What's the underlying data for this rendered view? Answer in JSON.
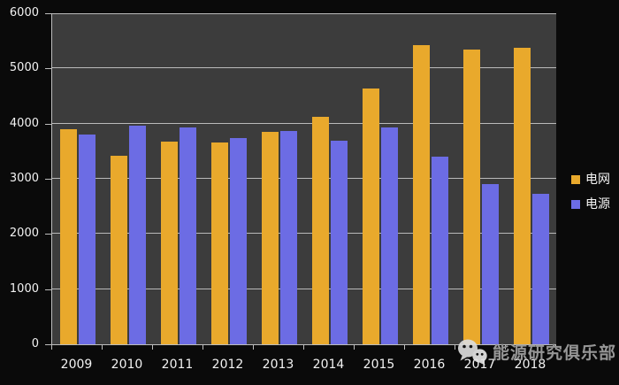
{
  "chart_data": {
    "type": "bar",
    "title": "",
    "categories": [
      "2009",
      "2010",
      "2011",
      "2012",
      "2013",
      "2014",
      "2015",
      "2016",
      "2017",
      "2018"
    ],
    "series": [
      {
        "key": "grid",
        "name": "电网",
        "color": "#e9a92c",
        "values": [
          3898,
          3410,
          3682,
          3661,
          3856,
          4119,
          4640,
          5426,
          5339,
          5373
        ]
      },
      {
        "key": "source",
        "name": "电源",
        "color": "#6c6ce4",
        "values": [
          3803,
          3969,
          3927,
          3732,
          3872,
          3686,
          3936,
          3408,
          2900,
          2721
        ]
      }
    ],
    "xlabel": "",
    "ylabel": "",
    "ylim": [
      0,
      6000
    ],
    "y_ticks": [
      "0",
      "1000",
      "2000",
      "3000",
      "4000",
      "5000",
      "6000"
    ],
    "grid": true,
    "legend_position": "right"
  },
  "style": {
    "background": "#0a0a0a",
    "plot_background": "#3c3c3c",
    "gridline_color": "#e4e4e4",
    "axis_color": "#bdbdbd",
    "tick_label_color": "#f2f2f2",
    "legend_text_color": "#f5f5f5"
  },
  "watermark": {
    "icon": "wechat-icon",
    "text": "能源研究俱乐部",
    "color": "#969696"
  }
}
